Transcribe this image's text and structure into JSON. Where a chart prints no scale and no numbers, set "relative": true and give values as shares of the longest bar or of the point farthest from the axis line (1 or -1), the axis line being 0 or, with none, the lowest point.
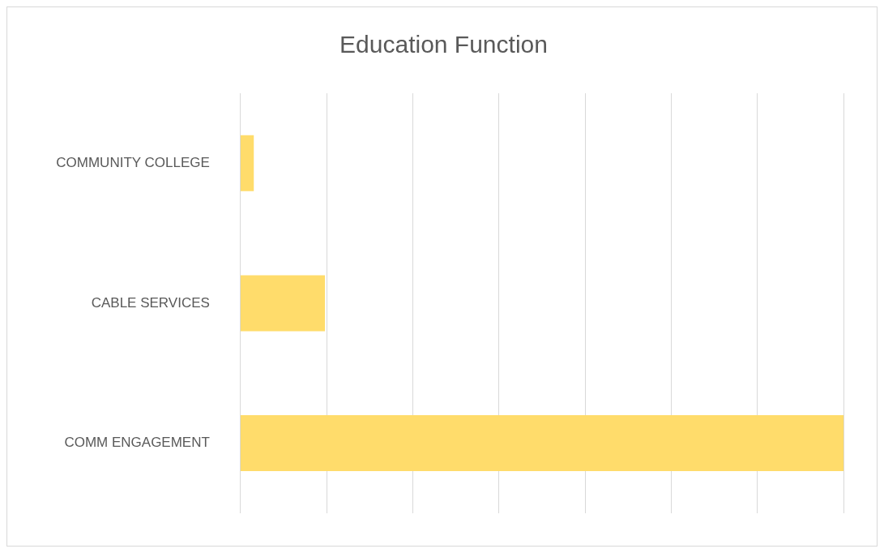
{
  "chart_data": {
    "type": "bar",
    "title": "Education Function",
    "orientation": "horizontal",
    "relative": true,
    "categories": [
      "COMMUNITY COLLEGE",
      "CABLE SERVICES",
      "COMM ENGAGEMENT"
    ],
    "values": [
      0.022,
      0.14,
      1
    ],
    "color": "#ffdc6b",
    "grid": "x",
    "legend": false
  }
}
